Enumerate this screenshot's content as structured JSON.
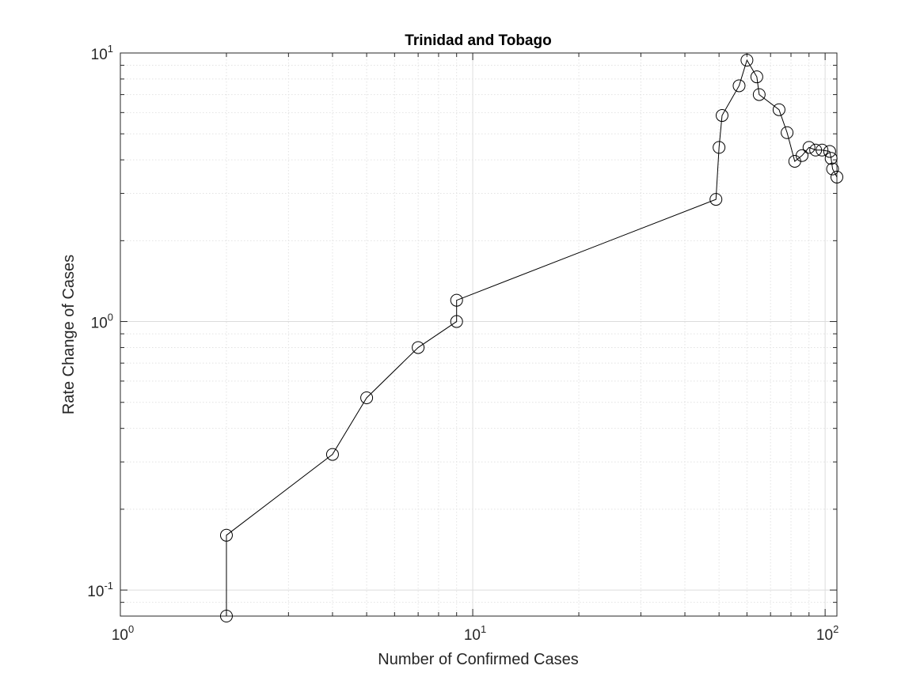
{
  "chart_data": {
    "type": "line",
    "title": "Trinidad and Tobago",
    "xlabel": "Number of Confirmed Cases",
    "ylabel": "Rate Change of Cases",
    "xscale": "log",
    "yscale": "log",
    "xlim": [
      1,
      108
    ],
    "ylim": [
      0.08,
      10
    ],
    "grid": true,
    "minor_grid": true,
    "marker": "open-circle",
    "line_color": "#000000",
    "x_tick_labels": [
      {
        "base": "10",
        "exp": "0"
      },
      {
        "base": "10",
        "exp": "1"
      },
      {
        "base": "10",
        "exp": "2"
      }
    ],
    "y_tick_labels": [
      {
        "base": "10",
        "exp": "-1"
      },
      {
        "base": "10",
        "exp": "0"
      },
      {
        "base": "10",
        "exp": "1"
      }
    ],
    "series": [
      {
        "x": [
          2,
          2,
          4,
          5,
          7,
          9,
          9,
          49,
          50,
          51,
          57,
          60,
          64,
          65,
          74,
          78,
          82,
          86,
          90,
          94,
          98,
          103,
          104,
          105,
          108
        ],
        "y": [
          0.08,
          0.16,
          0.32,
          0.52,
          0.8,
          1.0,
          1.2,
          2.85,
          4.45,
          5.85,
          7.55,
          9.4,
          8.15,
          7.0,
          6.15,
          5.05,
          3.95,
          4.15,
          4.45,
          4.35,
          4.35,
          4.3,
          4.05,
          3.7,
          3.45
        ]
      }
    ]
  }
}
